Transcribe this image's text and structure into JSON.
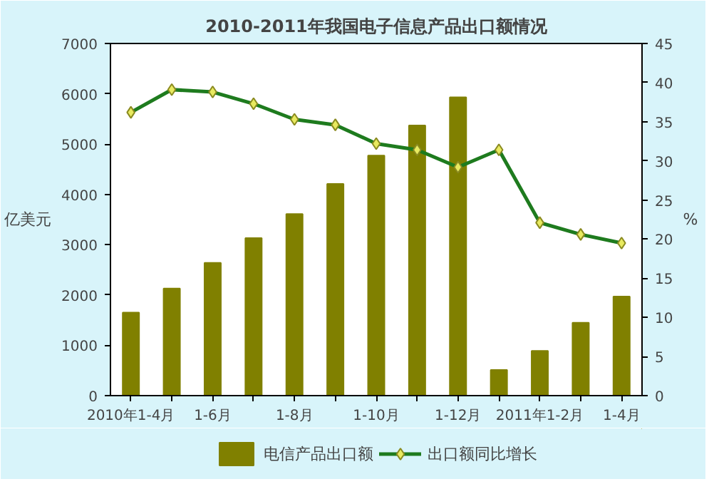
{
  "chart_data": {
    "type": "bar",
    "title": "2010-2011年我国电子信息产品出口额情况",
    "ylabel": "亿美元",
    "y2label": "%",
    "categories": [
      "2010年1-4月",
      null,
      "1-6月",
      null,
      "1-8月",
      null,
      "1-10月",
      null,
      "1-12月",
      null,
      "2011年1-2月",
      null,
      "1-4月"
    ],
    "series": [
      {
        "name": "电信产品出口额",
        "color": "#808000",
        "values": [
          1650,
          2130,
          2640,
          3130,
          3610,
          4210,
          4770,
          5370,
          5930,
          510,
          890,
          1450,
          1970
        ]
      },
      {
        "name": "出口额同比增长",
        "type": "line",
        "axis": "y2",
        "color": "#1e7b1e",
        "marker": "diamond",
        "values": [
          36.2,
          39.1,
          38.8,
          37.3,
          35.3,
          34.6,
          32.2,
          31.4,
          29.2,
          31.4,
          22.1,
          20.6,
          19.5
        ]
      }
    ],
    "ylim": [
      0,
      7000
    ],
    "yticks": [
      0,
      1000,
      2000,
      3000,
      4000,
      5000,
      6000,
      7000
    ],
    "y2lim": [
      0,
      45
    ],
    "y2ticks": [
      0,
      5,
      10,
      15,
      20,
      25,
      30,
      35,
      40,
      45
    ],
    "grid": false,
    "legend": "bottom"
  }
}
